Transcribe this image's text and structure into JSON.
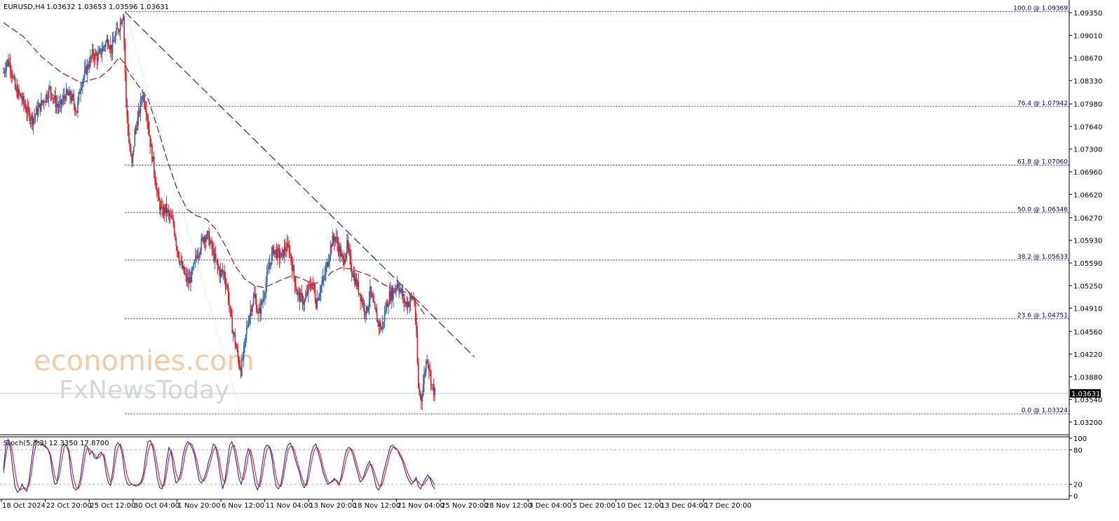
{
  "header": {
    "symbol": "EURUSD,H4",
    "ohlc": "1.03632 1.03653 1.03596 1.03631"
  },
  "stoch_header": "Stoch(5,3,3) 12.3350 17.8700",
  "watermark": {
    "line1": "economies.com",
    "line2": "FxNewsToday"
  },
  "colors": {
    "bull": "#3566a8",
    "bear": "#e4171c",
    "ma": "#8b1a1a",
    "trend": "#283c8c",
    "fib": "#2b2b8a",
    "price_line": "#a8d2e6",
    "stoch_main": "#1f2a9a",
    "stoch_signal": "#e4171c"
  },
  "chart_data": [
    {
      "type": "candlestick",
      "title": "EURUSD,H4",
      "ylim": [
        1.0303,
        1.0952
      ],
      "y_ticks": [
        "1.09350",
        "1.09010",
        "1.08670",
        "1.08330",
        "1.07980",
        "1.07640",
        "1.07300",
        "1.06960",
        "1.06620",
        "1.06270",
        "1.05930",
        "1.05590",
        "1.05250",
        "1.04910",
        "1.04560",
        "1.04220",
        "1.03880",
        "1.03540",
        "1.03200"
      ],
      "x_ticks": [
        "18 Oct 2024",
        "22 Oct 20:00",
        "25 Oct 12:00",
        "30 Oct 04:00",
        "1 Nov 20:00",
        "6 Nov 12:00",
        "11 Nov 04:00",
        "13 Nov 20:00",
        "18 Nov 12:00",
        "21 Nov 04:00",
        "25 Nov 20:00",
        "28 Nov 12:00",
        "3 Dec 04:00",
        "5 Dec 20:00",
        "10 Dec 12:00",
        "13 Dec 04:00",
        "17 Dec 20:00"
      ],
      "current_price": "1.03631",
      "price_path": [
        [
          0,
          1.0845
        ],
        [
          3,
          1.0862
        ],
        [
          7,
          1.0858
        ],
        [
          12,
          1.082
        ],
        [
          18,
          1.0808
        ],
        [
          25,
          1.0785
        ],
        [
          30,
          1.0775
        ],
        [
          36,
          1.079
        ],
        [
          42,
          1.0805
        ],
        [
          48,
          1.082
        ],
        [
          54,
          1.08
        ],
        [
          58,
          1.0792
        ],
        [
          64,
          1.0812
        ],
        [
          70,
          1.0808
        ],
        [
          76,
          1.0788
        ],
        [
          80,
          1.0828
        ],
        [
          86,
          1.085
        ],
        [
          92,
          1.0872
        ],
        [
          98,
          1.0868
        ],
        [
          104,
          1.0885
        ],
        [
          108,
          1.0895
        ],
        [
          112,
          1.088
        ],
        [
          116,
          1.09
        ],
        [
          120,
          1.0915
        ],
        [
          124,
          1.0936
        ],
        [
          127,
          1.08
        ],
        [
          130,
          1.074
        ],
        [
          133,
          1.0705
        ],
        [
          136,
          1.0755
        ],
        [
          140,
          1.078
        ],
        [
          144,
          1.0815
        ],
        [
          148,
          1.079
        ],
        [
          152,
          1.074
        ],
        [
          156,
          1.07
        ],
        [
          160,
          1.0655
        ],
        [
          164,
          1.0635
        ],
        [
          168,
          1.064
        ],
        [
          172,
          1.0628
        ],
        [
          176,
          1.0618
        ],
        [
          180,
          1.058
        ],
        [
          184,
          1.0555
        ],
        [
          188,
          1.054
        ],
        [
          192,
          1.053
        ],
        [
          196,
          1.0545
        ],
        [
          200,
          1.057
        ],
        [
          204,
          1.0585
        ],
        [
          208,
          1.06
        ],
        [
          212,
          1.0598
        ],
        [
          216,
          1.058
        ],
        [
          220,
          1.056
        ],
        [
          224,
          1.0545
        ],
        [
          228,
          1.0545
        ],
        [
          232,
          1.052
        ],
        [
          236,
          1.047
        ],
        [
          240,
          1.044
        ],
        [
          243,
          1.0415
        ],
        [
          246,
          1.0398
        ],
        [
          249,
          1.0425
        ],
        [
          252,
          1.046
        ],
        [
          256,
          1.049
        ],
        [
          260,
          1.051
        ],
        [
          264,
          1.048
        ],
        [
          268,
          1.05
        ],
        [
          272,
          1.0528
        ],
        [
          276,
          1.056
        ],
        [
          280,
          1.058
        ],
        [
          284,
          1.0572
        ],
        [
          288,
          1.0568
        ],
        [
          292,
          1.0582
        ],
        [
          296,
          1.058
        ],
        [
          300,
          1.0548
        ],
        [
          304,
          1.0515
        ],
        [
          308,
          1.0505
        ],
        [
          312,
          1.05
        ],
        [
          316,
          1.052
        ],
        [
          320,
          1.053
        ],
        [
          324,
          1.05
        ],
        [
          328,
          1.052
        ],
        [
          332,
          1.0535
        ],
        [
          336,
          1.0562
        ],
        [
          340,
          1.059
        ],
        [
          344,
          1.0598
        ],
        [
          348,
          1.0578
        ],
        [
          352,
          1.056
        ],
        [
          356,
          1.0585
        ],
        [
          360,
          1.0555
        ],
        [
          364,
          1.0535
        ],
        [
          368,
          1.052
        ],
        [
          372,
          1.05
        ],
        [
          376,
          1.0485
        ],
        [
          380,
          1.0515
        ],
        [
          384,
          1.049
        ],
        [
          388,
          1.047
        ],
        [
          392,
          1.046
        ],
        [
          396,
          1.049
        ],
        [
          400,
          1.051
        ],
        [
          404,
          1.0515
        ],
        [
          408,
          1.053
        ],
        [
          412,
          1.0515
        ],
        [
          416,
          1.0498
        ],
        [
          420,
          1.05
        ],
        [
          424,
          1.0508
        ],
        [
          426,
          1.05
        ],
        [
          428,
          1.0445
        ],
        [
          430,
          1.037
        ],
        [
          433,
          1.0355
        ],
        [
          436,
          1.039
        ],
        [
          439,
          1.042
        ],
        [
          441,
          1.0402
        ],
        [
          444,
          1.0375
        ],
        [
          447,
          1.0363
        ]
      ],
      "moving_average": [
        [
          0,
          1.092
        ],
        [
          20,
          1.09
        ],
        [
          40,
          1.0868
        ],
        [
          60,
          1.0845
        ],
        [
          80,
          1.083
        ],
        [
          100,
          1.0838
        ],
        [
          110,
          1.085
        ],
        [
          120,
          1.0868
        ],
        [
          125,
          1.086
        ],
        [
          130,
          1.0845
        ],
        [
          140,
          1.0825
        ],
        [
          150,
          1.0805
        ],
        [
          160,
          1.076
        ],
        [
          170,
          1.0712
        ],
        [
          180,
          1.067
        ],
        [
          190,
          1.064
        ],
        [
          200,
          1.063
        ],
        [
          210,
          1.0625
        ],
        [
          220,
          1.061
        ],
        [
          230,
          1.0585
        ],
        [
          240,
          1.0555
        ],
        [
          250,
          1.0535
        ],
        [
          260,
          1.0525
        ],
        [
          270,
          1.0522
        ],
        [
          280,
          1.0528
        ],
        [
          290,
          1.0535
        ],
        [
          300,
          1.054
        ],
        [
          310,
          1.0535
        ],
        [
          320,
          1.0528
        ],
        [
          330,
          1.053
        ],
        [
          340,
          1.0545
        ],
        [
          350,
          1.0552
        ],
        [
          360,
          1.055
        ],
        [
          370,
          1.0545
        ],
        [
          380,
          1.054
        ],
        [
          390,
          1.053
        ],
        [
          400,
          1.0522
        ],
        [
          410,
          1.0518
        ],
        [
          420,
          1.0514
        ],
        [
          430,
          1.0496
        ],
        [
          438,
          1.0478
        ]
      ],
      "trendline": {
        "from": [
          126,
          1.0936
        ],
        "to": [
          488,
          1.0418
        ]
      },
      "fibonacci": [
        {
          "label": "100.0 @ 1.09369",
          "value": 1.09369
        },
        {
          "label": "76.4 @ 1.07942",
          "value": 1.07942
        },
        {
          "label": "61.8 @ 1.07060",
          "value": 1.0706
        },
        {
          "label": "50.0 @ 1.06346",
          "value": 1.06346
        },
        {
          "label": "38.2 @ 1.05633",
          "value": 1.05633
        },
        {
          "label": "23.6 @ 1.04751",
          "value": 1.04751
        },
        {
          "label": "0.0 @ 1.03324",
          "value": 1.03324
        }
      ]
    },
    {
      "type": "line",
      "title": "Stoch(5,3,3) 12.3350 17.8700",
      "ylim": [
        0,
        100
      ],
      "y_ticks": [
        "100",
        "80",
        "20",
        "0"
      ],
      "levels": [
        80,
        20
      ],
      "series": [
        {
          "values": [
            45,
            88,
            98,
            82,
            45,
            15,
            6,
            10,
            20,
            12,
            8,
            28,
            60,
            92,
            97,
            92,
            88,
            90,
            84,
            82,
            70,
            40,
            20,
            22,
            55,
            84,
            90,
            88,
            75,
            36,
            15,
            10,
            14,
            30,
            62,
            88,
            85,
            72,
            78,
            66,
            64,
            72,
            76,
            68,
            40,
            22,
            18,
            48,
            85,
            92,
            88,
            70,
            36,
            22,
            18,
            20,
            18,
            17,
            20,
            24,
            38,
            70,
            94,
            96,
            84,
            60,
            30,
            14,
            12,
            26,
            62,
            84,
            74,
            44,
            22,
            26,
            40,
            70,
            86,
            94,
            90,
            82,
            70,
            46,
            26,
            22,
            30,
            42,
            60,
            72,
            90,
            86,
            64,
            34,
            12,
            26,
            58,
            88,
            94,
            80,
            56,
            30,
            20,
            38,
            66,
            82,
            72,
            44,
            20,
            10,
            24,
            54,
            82,
            88,
            86,
            70,
            38,
            16,
            12,
            20,
            44,
            74,
            88,
            92,
            82,
            66,
            52,
            40,
            22,
            14,
            22,
            48,
            74,
            86,
            90,
            76,
            60,
            42,
            30,
            20,
            22,
            26,
            30,
            24,
            18,
            36,
            60,
            78,
            84,
            82,
            70,
            54,
            38,
            24,
            28,
            40,
            52,
            60,
            48,
            32,
            14,
            10,
            20,
            40,
            56,
            72,
            86,
            88,
            82,
            80,
            70,
            62,
            48,
            34,
            26,
            20,
            24,
            32,
            16,
            12,
            22,
            30,
            36,
            30,
            18,
            12
          ]
        },
        {
          "values": [
            40,
            70,
            90,
            92,
            72,
            40,
            18,
            10,
            12,
            14,
            12,
            18,
            40,
            72,
            90,
            95,
            92,
            88,
            86,
            82,
            74,
            55,
            34,
            24,
            35,
            62,
            84,
            88,
            80,
            58,
            32,
            16,
            12,
            20,
            42,
            70,
            84,
            80,
            76,
            72,
            66,
            66,
            72,
            72,
            56,
            36,
            22,
            32,
            62,
            84,
            90,
            80,
            58,
            36,
            24,
            20,
            19,
            18,
            18,
            21,
            30,
            50,
            76,
            90,
            90,
            76,
            52,
            28,
            16,
            18,
            40,
            68,
            78,
            62,
            40,
            28,
            30,
            50,
            74,
            88,
            92,
            88,
            76,
            60,
            40,
            28,
            26,
            34,
            48,
            62,
            78,
            86,
            76,
            54,
            30,
            22,
            40,
            68,
            86,
            88,
            72,
            48,
            30,
            28,
            46,
            70,
            80,
            64,
            40,
            20,
            16,
            34,
            62,
            80,
            86,
            78,
            56,
            32,
            18,
            16,
            30,
            56,
            78,
            86,
            86,
            76,
            60,
            46,
            32,
            20,
            18,
            32,
            56,
            76,
            84,
            82,
            70,
            52,
            38,
            26,
            22,
            24,
            28,
            27,
            22,
            28,
            44,
            64,
            78,
            82,
            78,
            64,
            48,
            34,
            28,
            34,
            44,
            54,
            54,
            42,
            28,
            18,
            16,
            26,
            44,
            60,
            76,
            84,
            84,
            80,
            74,
            66,
            56,
            44,
            34,
            26,
            24,
            28,
            24,
            18,
            18,
            24,
            30,
            32,
            26,
            18
          ]
        }
      ]
    }
  ]
}
